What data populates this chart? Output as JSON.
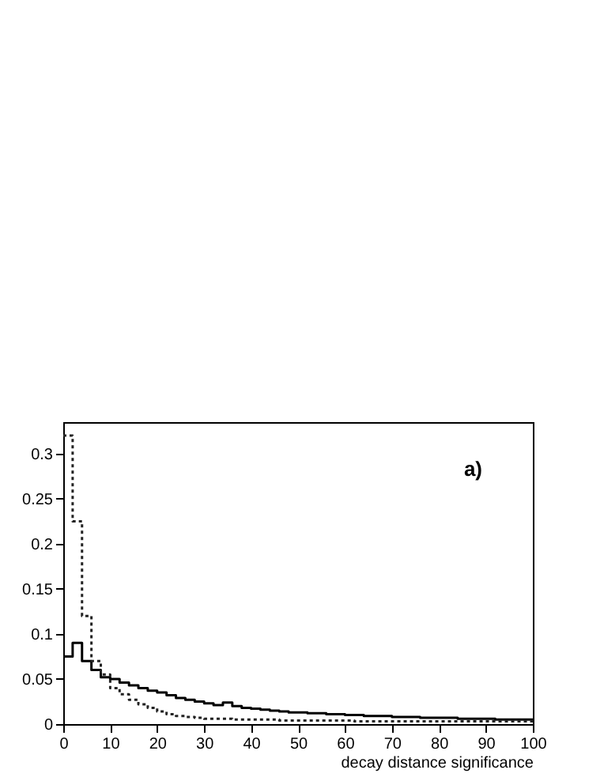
{
  "chart_data": {
    "type": "histogram",
    "xlabel": "decay distance significance",
    "annotations": [
      "a)"
    ],
    "bins": [
      0,
      2,
      4,
      6,
      8,
      10,
      12,
      14,
      16,
      18,
      20,
      22,
      24,
      26,
      28,
      30,
      32,
      34,
      36,
      38,
      40,
      42,
      44,
      46,
      48,
      50,
      52,
      54,
      56,
      58,
      60,
      62,
      64,
      66,
      68,
      70,
      72,
      74,
      76,
      78,
      80,
      82,
      84,
      86,
      88,
      90,
      92,
      94,
      96,
      98,
      100
    ],
    "series": [
      {
        "color": "#000000",
        "line_style": "solid",
        "values": [
          0.075,
          0.09,
          0.07,
          0.06,
          0.052,
          0.05,
          0.046,
          0.043,
          0.04,
          0.037,
          0.035,
          0.032,
          0.029,
          0.027,
          0.025,
          0.023,
          0.021,
          0.024,
          0.02,
          0.018,
          0.017,
          0.016,
          0.015,
          0.014,
          0.013,
          0.013,
          0.012,
          0.012,
          0.011,
          0.011,
          0.01,
          0.01,
          0.009,
          0.009,
          0.009,
          0.008,
          0.008,
          0.008,
          0.007,
          0.007,
          0.007,
          0.007,
          0.006,
          0.006,
          0.006,
          0.006,
          0.005,
          0.005,
          0.005,
          0.005
        ]
      },
      {
        "color": "#222222",
        "line_style": "dotted",
        "values": [
          0.32,
          0.225,
          0.12,
          0.07,
          0.055,
          0.04,
          0.033,
          0.027,
          0.022,
          0.018,
          0.014,
          0.011,
          0.009,
          0.008,
          0.007,
          0.006,
          0.006,
          0.006,
          0.005,
          0.005,
          0.005,
          0.005,
          0.005,
          0.004,
          0.004,
          0.004,
          0.004,
          0.004,
          0.004,
          0.004,
          0.004,
          0.003,
          0.003,
          0.003,
          0.003,
          0.003,
          0.003,
          0.003,
          0.003,
          0.003,
          0.003,
          0.003,
          0.003,
          0.003,
          0.003,
          0.003,
          0.003,
          0.003,
          0.003,
          0.003
        ]
      }
    ],
    "xlim": [
      0,
      100
    ],
    "xticks": [
      0,
      10,
      20,
      30,
      40,
      50,
      60,
      70,
      80,
      90,
      100
    ],
    "ylim": [
      0,
      0.335
    ],
    "yticks": [
      0,
      0.05,
      0.1,
      0.15,
      0.2,
      0.25,
      0.3
    ],
    "grid": false
  }
}
